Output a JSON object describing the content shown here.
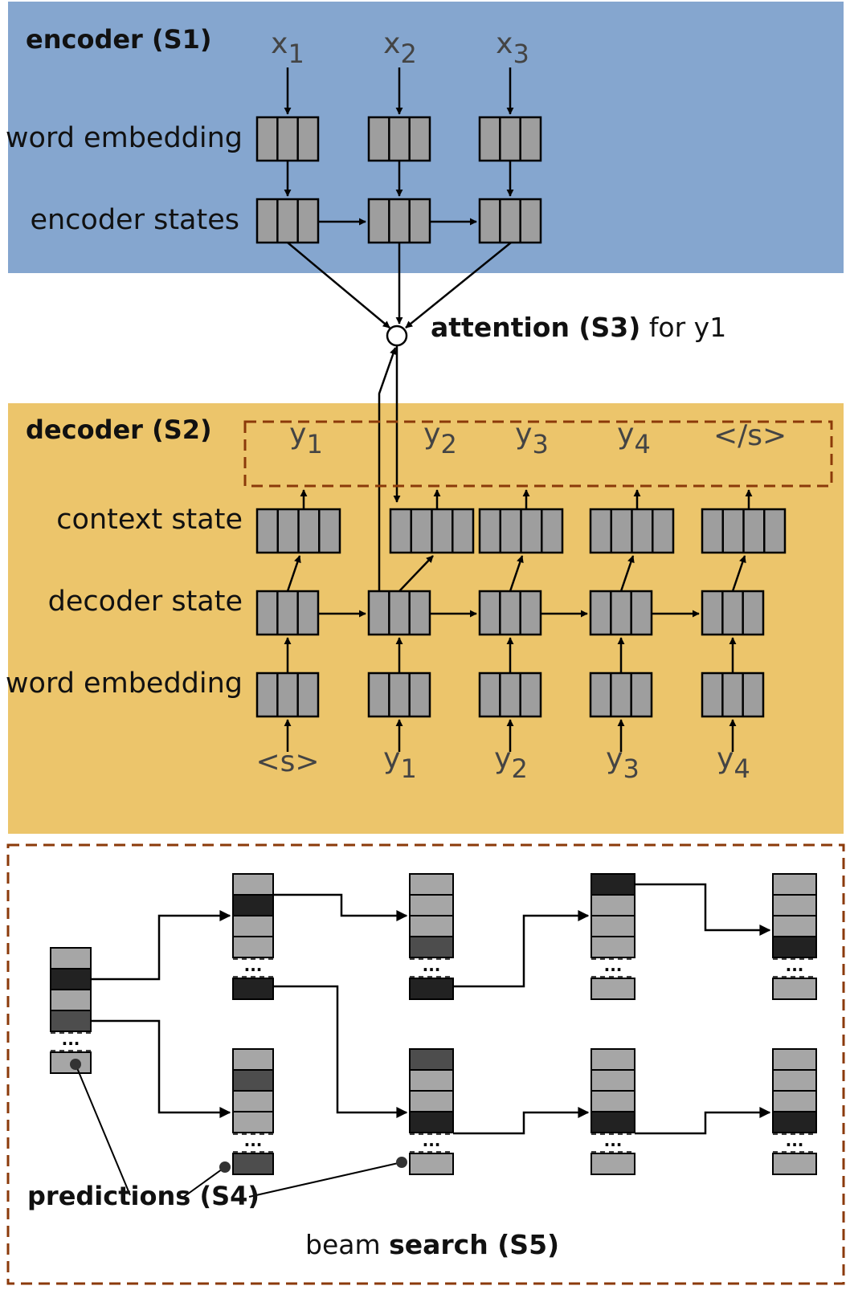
{
  "encoder": {
    "title": "encoder (S1)",
    "row_word_embedding": "word embedding",
    "row_states": "encoder states",
    "inputs": [
      {
        "base": "x",
        "sub": "1"
      },
      {
        "base": "x",
        "sub": "2"
      },
      {
        "base": "x",
        "sub": "3"
      }
    ]
  },
  "attention": {
    "bold": "attention (S3)",
    "rest": " for y1"
  },
  "decoder": {
    "title": "decoder (S2)",
    "row_context": "context state",
    "row_state": "decoder state",
    "row_word_embedding": "word embedding",
    "outputs": [
      {
        "base": "y",
        "sub": "1"
      },
      {
        "base": "y",
        "sub": "2"
      },
      {
        "base": "y",
        "sub": "3"
      },
      {
        "base": "y",
        "sub": "4"
      },
      {
        "base": "</s>",
        "sub": ""
      }
    ],
    "inputs": [
      {
        "base": "<s>",
        "sub": ""
      },
      {
        "base": "y",
        "sub": "1"
      },
      {
        "base": "y",
        "sub": "2"
      },
      {
        "base": "y",
        "sub": "3"
      },
      {
        "base": "y",
        "sub": "4"
      }
    ]
  },
  "beam": {
    "predictions_label": "predictions (S4)",
    "title_plain": "beam ",
    "title_bold": "search (S5)",
    "ellipsis": "...",
    "colors": {
      "light": "#a6a6a6",
      "dark": "#222222",
      "mid": "#4d4d4d"
    }
  }
}
